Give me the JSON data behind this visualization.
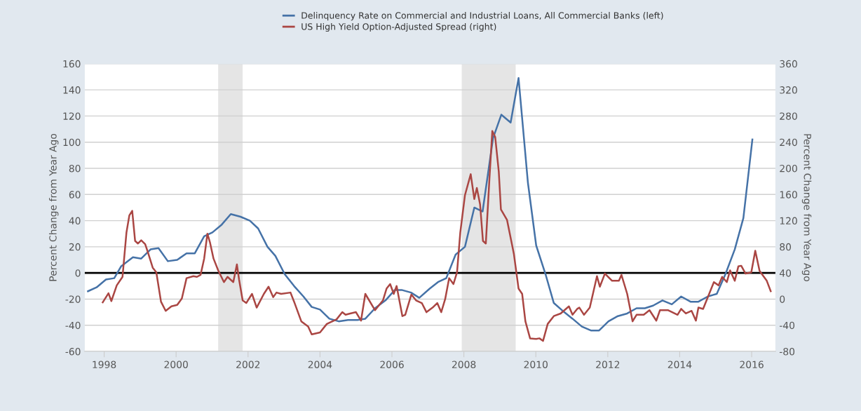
{
  "chart_data": {
    "type": "line",
    "ylabel": "Percent Change from Year Ago",
    "y2label": "Percent Change from Year Ago",
    "xlim": [
      1997.45,
      2016.67
    ],
    "xticks": [
      1998,
      2000,
      2002,
      2004,
      2006,
      2008,
      2010,
      2012,
      2014,
      2016
    ],
    "ylim": [
      -60,
      160
    ],
    "yticks": [
      -60,
      -40,
      -20,
      0,
      20,
      40,
      60,
      80,
      100,
      120,
      140,
      160
    ],
    "y2lim": [
      -80,
      360
    ],
    "y2ticks": [
      -80,
      -40,
      0,
      40,
      80,
      120,
      160,
      200,
      240,
      280,
      320,
      360
    ],
    "grid": "y",
    "legend": "top",
    "line_style": "solid",
    "ref_lines": [
      {
        "axis": "y",
        "value": 0,
        "color": "#000000"
      }
    ],
    "bands": [
      {
        "axis": "x",
        "from": 2001.17,
        "to": 2001.85,
        "color": "#e5e5e5"
      },
      {
        "axis": "x",
        "from": 2007.94,
        "to": 2009.44,
        "color": "#e5e5e5"
      }
    ],
    "series": [
      {
        "name": "Delinquency Rate on Commercial and Industrial Loans, All Commercial Banks (left)",
        "color": "#4572a7",
        "axis": "y",
        "x": [
          1997.55,
          1997.79,
          1998.05,
          1998.28,
          1998.47,
          1998.8,
          1999.03,
          1999.29,
          1999.51,
          1999.77,
          2000.03,
          2000.29,
          2000.52,
          2000.78,
          2001.01,
          2001.27,
          2001.52,
          2001.79,
          2002.05,
          2002.28,
          2002.54,
          2002.76,
          2003.02,
          2003.28,
          2003.54,
          2003.77,
          2004.0,
          2004.26,
          2004.52,
          2004.78,
          2005.04,
          2005.26,
          2005.53,
          2005.82,
          2006.08,
          2006.27,
          2006.53,
          2006.76,
          2007.05,
          2007.28,
          2007.51,
          2007.77,
          2008.03,
          2008.29,
          2008.52,
          2008.81,
          2009.04,
          2009.3,
          2009.52,
          2009.78,
          2010.01,
          2010.27,
          2010.5,
          2010.79,
          2011.02,
          2011.28,
          2011.53,
          2011.76,
          2012.02,
          2012.28,
          2012.54,
          2012.8,
          2013.03,
          2013.26,
          2013.52,
          2013.78,
          2014.04,
          2014.3,
          2014.52,
          2014.78,
          2015.03,
          2015.27,
          2015.53,
          2015.77,
          2016.02
        ],
        "values": [
          -14,
          -11,
          -5,
          -4,
          5,
          12,
          11,
          18,
          19,
          9,
          10,
          15,
          15,
          28,
          31,
          37,
          45,
          43,
          40,
          34,
          20,
          13,
          -1,
          -10,
          -18,
          -26,
          -28,
          -35,
          -37,
          -36,
          -36,
          -35,
          -27,
          -21,
          -13,
          -13,
          -15,
          -19,
          -12,
          -7,
          -4,
          14,
          20,
          50,
          47,
          103,
          121,
          115,
          149,
          69,
          21,
          -1,
          -23,
          -30,
          -35,
          -41,
          -44,
          -44,
          -37,
          -33,
          -31,
          -27,
          -27,
          -25,
          -21,
          -24,
          -18,
          -22,
          -22,
          -18,
          -16,
          -1,
          18,
          42,
          102
        ]
      },
      {
        "name": "US High Yield Option-Adjusted Spread (right)",
        "color": "#aa4643",
        "axis": "y2",
        "x": [
          1997.96,
          1998.12,
          1998.2,
          1998.35,
          1998.51,
          1998.62,
          1998.7,
          1998.78,
          1998.86,
          1998.94,
          1999.03,
          1999.14,
          1999.22,
          1999.35,
          1999.45,
          1999.58,
          1999.71,
          1999.87,
          2000.03,
          2000.16,
          2000.29,
          2000.48,
          2000.58,
          2000.68,
          2000.78,
          2000.87,
          2000.94,
          2001.04,
          2001.17,
          2001.33,
          2001.43,
          2001.59,
          2001.69,
          2001.75,
          2001.85,
          2001.95,
          2002.11,
          2002.24,
          2002.44,
          2002.57,
          2002.7,
          2002.79,
          2002.92,
          2003.18,
          2003.28,
          2003.48,
          2003.67,
          2003.77,
          2004.0,
          2004.19,
          2004.46,
          2004.62,
          2004.71,
          2004.84,
          2005.0,
          2005.14,
          2005.26,
          2005.53,
          2005.75,
          2005.85,
          2005.95,
          2006.05,
          2006.13,
          2006.29,
          2006.37,
          2006.54,
          2006.67,
          2006.83,
          2006.96,
          2007.13,
          2007.26,
          2007.37,
          2007.48,
          2007.59,
          2007.71,
          2007.81,
          2007.9,
          2008.03,
          2008.19,
          2008.29,
          2008.36,
          2008.45,
          2008.53,
          2008.61,
          2008.71,
          2008.79,
          2008.87,
          2008.97,
          2009.03,
          2009.2,
          2009.39,
          2009.52,
          2009.62,
          2009.71,
          2009.84,
          2010.01,
          2010.1,
          2010.2,
          2010.33,
          2010.5,
          2010.69,
          2010.92,
          2011.02,
          2011.15,
          2011.21,
          2011.34,
          2011.5,
          2011.7,
          2011.78,
          2011.92,
          2012.12,
          2012.31,
          2012.38,
          2012.54,
          2012.69,
          2012.8,
          2013.0,
          2013.16,
          2013.35,
          2013.45,
          2013.68,
          2013.94,
          2014.04,
          2014.17,
          2014.33,
          2014.45,
          2014.52,
          2014.65,
          2014.95,
          2015.08,
          2015.18,
          2015.31,
          2015.4,
          2015.53,
          2015.63,
          2015.71,
          2015.83,
          2015.99,
          2016.1,
          2016.22,
          2016.42,
          2016.53
        ],
        "values": [
          -5,
          9,
          -3,
          21,
          34,
          102,
          128,
          135,
          89,
          85,
          90,
          84,
          71,
          48,
          41,
          -4,
          -18,
          -11,
          -9,
          1,
          32,
          35,
          34,
          37,
          62,
          100,
          87,
          62,
          44,
          26,
          34,
          26,
          53,
          30,
          -2,
          -6,
          8,
          -13,
          8,
          19,
          3,
          10,
          8,
          10,
          -4,
          -34,
          -42,
          -54,
          -51,
          -38,
          -31,
          -20,
          -24,
          -22,
          -20,
          -33,
          8,
          -17,
          -2,
          16,
          23,
          8,
          20,
          -26,
          -24,
          7,
          -2,
          -6,
          -20,
          -13,
          -6,
          -20,
          0,
          32,
          23,
          41,
          102,
          159,
          191,
          153,
          170,
          145,
          89,
          85,
          184,
          257,
          248,
          195,
          137,
          121,
          69,
          16,
          8,
          -34,
          -60,
          -61,
          -60,
          -64,
          -38,
          -26,
          -22,
          -11,
          -24,
          -15,
          -13,
          -24,
          -13,
          35,
          19,
          39,
          28,
          28,
          37,
          8,
          -34,
          -24,
          -24,
          -17,
          -33,
          -17,
          -17,
          -24,
          -15,
          -22,
          -18,
          -33,
          -13,
          -15,
          26,
          21,
          34,
          26,
          44,
          28,
          50,
          51,
          39,
          41,
          74,
          43,
          28,
          12
        ]
      }
    ]
  }
}
